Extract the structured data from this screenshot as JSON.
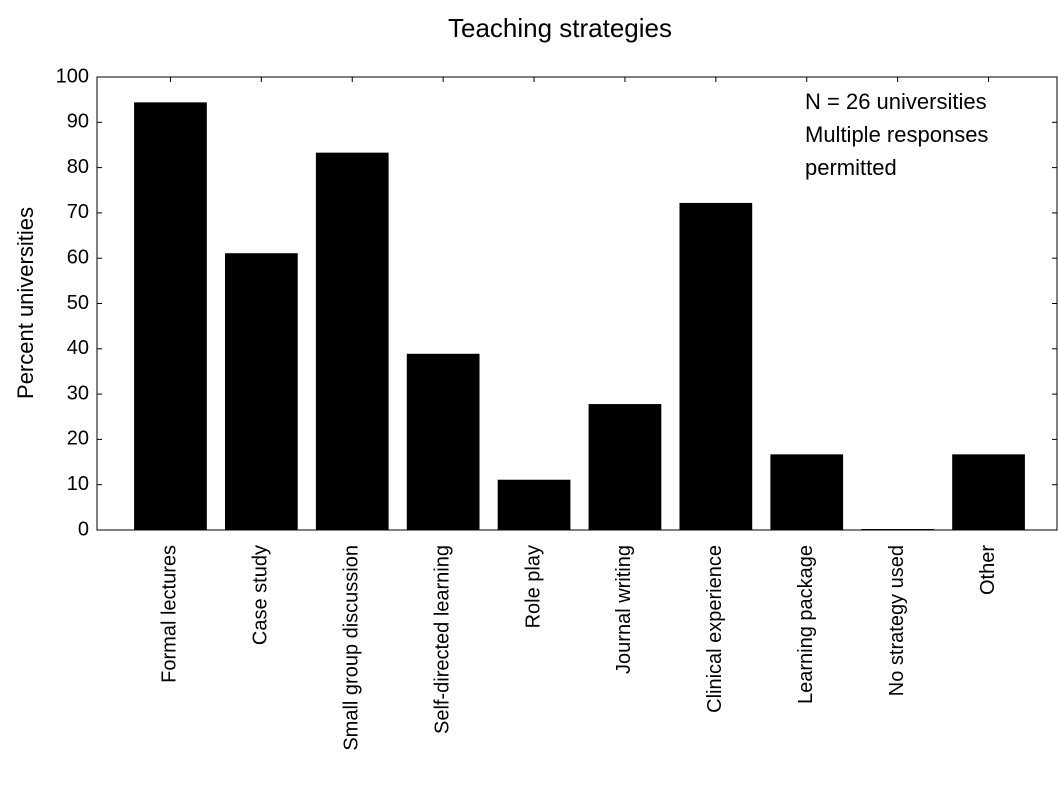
{
  "chart_data": {
    "type": "bar",
    "title": "Teaching strategies",
    "ylabel": "Percent universities",
    "annotation": [
      "N = 26 universities",
      "Multiple responses",
      "permitted"
    ],
    "categories": [
      "Formal lectures",
      "Case study",
      "Small group discussion",
      "Self-directed learning",
      "Role play",
      "Journal writing",
      "Clinical experience",
      "Learning package",
      "No strategy used",
      "Other"
    ],
    "values": [
      94.4,
      61.1,
      83.3,
      38.9,
      11.1,
      27.8,
      72.2,
      16.7,
      0,
      16.7
    ],
    "color": "#000000",
    "ylim": [
      0,
      100
    ],
    "yticks": [
      0,
      10,
      20,
      30,
      40,
      50,
      60,
      70,
      80,
      90,
      100
    ],
    "grid": false
  }
}
